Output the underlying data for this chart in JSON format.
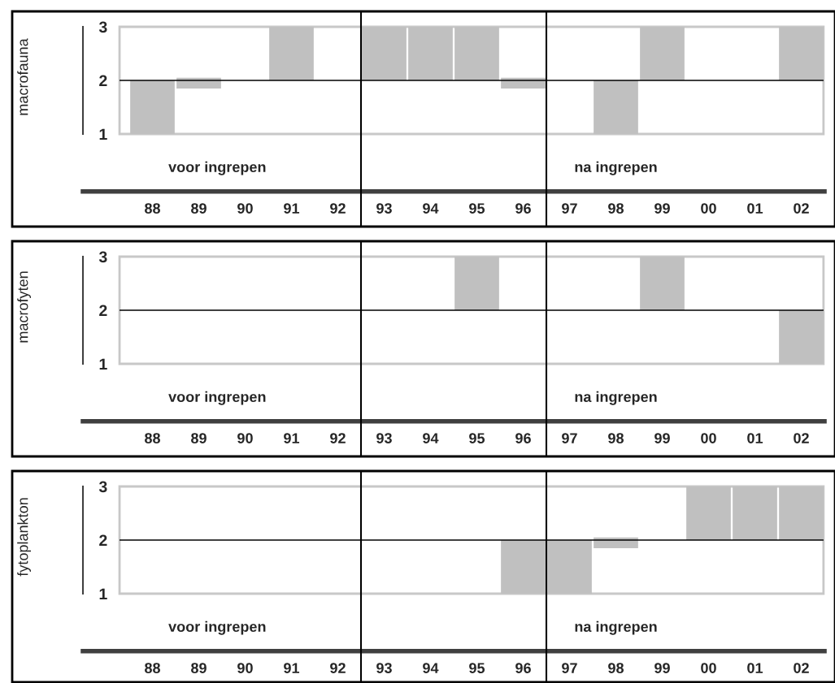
{
  "chart_data": [
    {
      "type": "bar",
      "ylabel": "macrofauna",
      "categories": [
        null,
        "88",
        "89",
        "90",
        "91",
        "92",
        "93",
        "94",
        "95",
        "96",
        "97",
        "98",
        "99",
        "00",
        "01",
        "02"
      ],
      "base": [
        null,
        1,
        1.85,
        null,
        2,
        null,
        2,
        2,
        2,
        1.85,
        null,
        1,
        2,
        null,
        null,
        2
      ],
      "values": [
        null,
        1,
        0.2,
        null,
        1,
        null,
        1,
        1,
        1,
        0.2,
        null,
        1,
        1,
        null,
        null,
        1
      ],
      "color": "#c0c0c0",
      "ylim": [
        1,
        3
      ],
      "yticks": [
        1,
        2,
        3
      ],
      "grid": false,
      "ref_lines": [
        {
          "axis": "y",
          "value": 2,
          "color": "#000000"
        }
      ],
      "annotations": [
        "voor ingrepen",
        "na ingrepen"
      ]
    },
    {
      "type": "bar",
      "ylabel": "macrofyten",
      "categories": [
        null,
        "88",
        "89",
        "90",
        "91",
        "92",
        "93",
        "94",
        "95",
        "96",
        "97",
        "98",
        "99",
        "00",
        "01",
        "02"
      ],
      "base": [
        null,
        null,
        null,
        null,
        null,
        null,
        null,
        null,
        2,
        null,
        null,
        null,
        2,
        null,
        null,
        1
      ],
      "values": [
        null,
        null,
        null,
        null,
        null,
        null,
        null,
        null,
        1,
        null,
        null,
        null,
        1,
        null,
        null,
        1
      ],
      "color": "#c0c0c0",
      "ylim": [
        1,
        3
      ],
      "yticks": [
        1,
        2,
        3
      ],
      "grid": false,
      "ref_lines": [
        {
          "axis": "y",
          "value": 2,
          "color": "#000000"
        }
      ],
      "annotations": [
        "voor ingrepen",
        "na ingrepen"
      ]
    },
    {
      "type": "bar",
      "ylabel": "fytoplankton",
      "categories": [
        null,
        "88",
        "89",
        "90",
        "91",
        "92",
        "93",
        "94",
        "95",
        "96",
        "97",
        "98",
        "99",
        "00",
        "01",
        "02"
      ],
      "base": [
        null,
        null,
        null,
        null,
        null,
        null,
        null,
        null,
        null,
        1,
        1,
        1.85,
        null,
        2,
        2,
        2
      ],
      "values": [
        null,
        null,
        null,
        null,
        null,
        null,
        null,
        null,
        null,
        1,
        1,
        0.2,
        null,
        1,
        1,
        1
      ],
      "color": "#c0c0c0",
      "ylim": [
        1,
        3
      ],
      "yticks": [
        1,
        2,
        3
      ],
      "grid": false,
      "ref_lines": [
        {
          "axis": "y",
          "value": 2,
          "color": "#000000"
        }
      ],
      "annotations": [
        "voor ingrepen",
        "na ingrepen"
      ]
    }
  ]
}
